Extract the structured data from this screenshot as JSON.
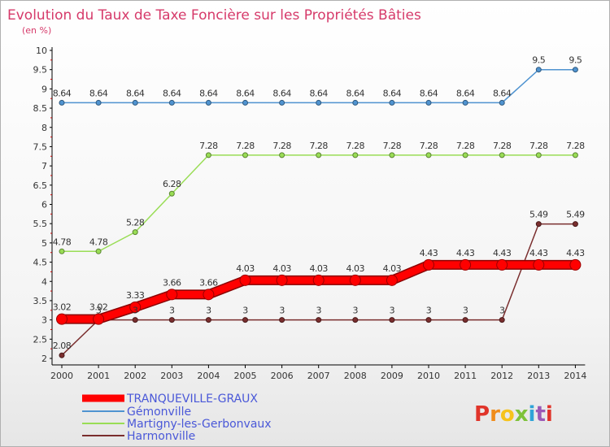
{
  "chart_data": {
    "type": "line",
    "title": "Evolution du Taux de Taxe Foncière sur les Propriétés Bâties",
    "subtitle": "(en %)",
    "x": [
      "2000",
      "2001",
      "2002",
      "2003",
      "2004",
      "2005",
      "2006",
      "2007",
      "2008",
      "2009",
      "2010",
      "2011",
      "2012",
      "2013",
      "2014"
    ],
    "y_ticks": [
      "2",
      "2.5",
      "3",
      "3.5",
      "4",
      "4.5",
      "5",
      "5.5",
      "6",
      "6.5",
      "7",
      "7.5",
      "8",
      "8.5",
      "9",
      "9.5",
      "10"
    ],
    "ylim": [
      2,
      10
    ],
    "grid": false,
    "legend_position": "bottom-left",
    "series": [
      {
        "name": "TRANQUEVILLE-GRAUX",
        "color": "#ff0000",
        "values": [
          3.02,
          3.02,
          3.33,
          3.66,
          3.66,
          4.03,
          4.03,
          4.03,
          4.03,
          4.03,
          4.43,
          4.43,
          4.43,
          4.43,
          4.43
        ],
        "labels": [
          "3.02",
          "3.02",
          "3.33",
          "3.66",
          "3.66",
          "4.03",
          "4.03",
          "4.03",
          "4.03",
          "4.03",
          "4.43",
          "4.43",
          "4.43",
          "4.43",
          "4.43"
        ]
      },
      {
        "name": "Gémonville",
        "color": "#4f93d0",
        "values": [
          8.64,
          8.64,
          8.64,
          8.64,
          8.64,
          8.64,
          8.64,
          8.64,
          8.64,
          8.64,
          8.64,
          8.64,
          8.64,
          9.5,
          9.5
        ],
        "labels": [
          "8.64",
          "8.64",
          "8.64",
          "8.64",
          "8.64",
          "8.64",
          "8.64",
          "8.64",
          "8.64",
          "8.64",
          "8.64",
          "8.64",
          "8.64",
          "9.5",
          "9.5"
        ]
      },
      {
        "name": "Martigny-les-Gerbonvaux",
        "color": "#99dd55",
        "values": [
          4.78,
          4.78,
          5.28,
          6.28,
          7.28,
          7.28,
          7.28,
          7.28,
          7.28,
          7.28,
          7.28,
          7.28,
          7.28,
          7.28,
          7.28
        ],
        "labels": [
          "4.78",
          "4.78",
          "5.28",
          "6.28",
          "7.28",
          "7.28",
          "7.28",
          "7.28",
          "7.28",
          "7.28",
          "7.28",
          "7.28",
          "7.28",
          "7.28",
          "7.28"
        ]
      },
      {
        "name": "Harmonville",
        "color": "#7a2e2e",
        "values": [
          2.08,
          3,
          3,
          3,
          3,
          3,
          3,
          3,
          3,
          3,
          3,
          3,
          3,
          5.49,
          5.49
        ],
        "labels": [
          "2.08",
          "3",
          "3",
          "3",
          "3",
          "3",
          "3",
          "3",
          "3",
          "3",
          "3",
          "3",
          "3",
          "5.49",
          "5.49"
        ]
      }
    ]
  },
  "logo": {
    "text": "Proxiti",
    "letter_colors": [
      "#e0342a",
      "#f08c1a",
      "#f6c31c",
      "#7ec23a",
      "#2fa4d8",
      "#9b59b6",
      "#e0342a"
    ]
  }
}
